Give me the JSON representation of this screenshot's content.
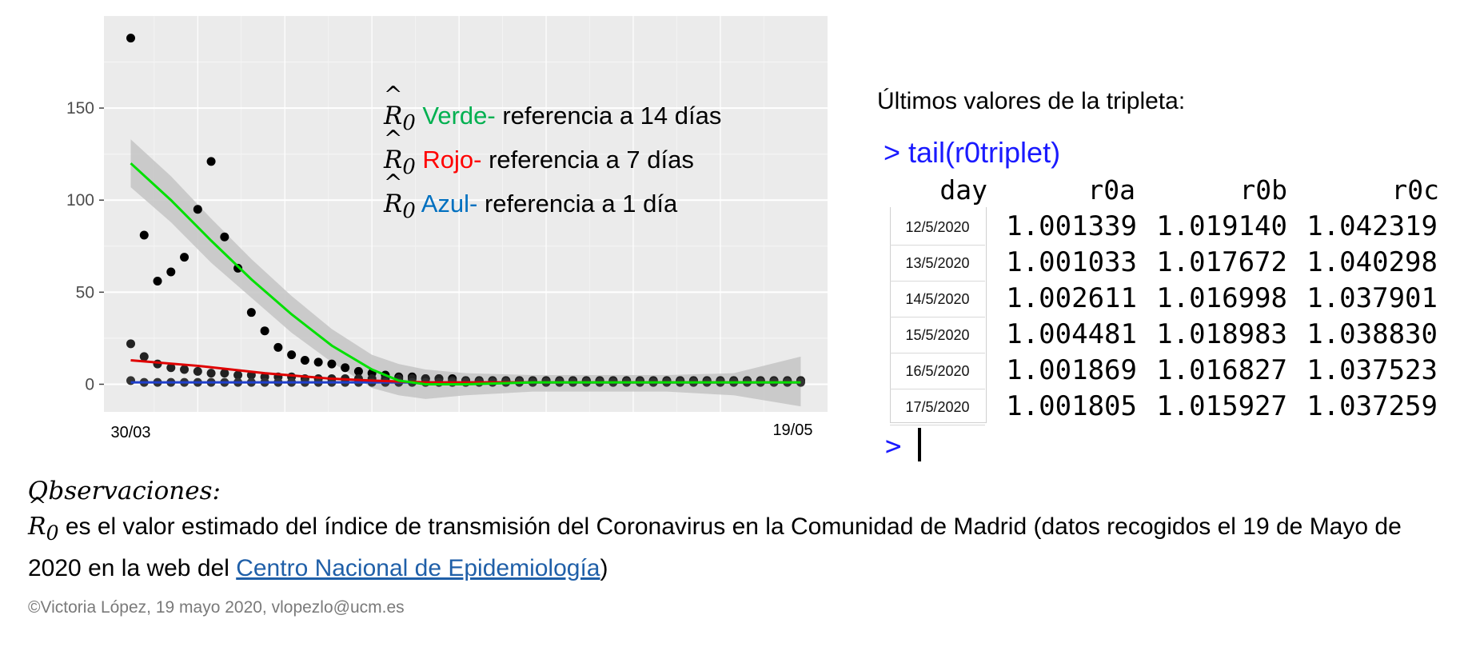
{
  "chart_data": {
    "type": "scatter",
    "x_tick_labels": [
      "30/03",
      "19/05"
    ],
    "y_ticks": [
      0,
      50,
      100,
      150
    ],
    "ylim": [
      -15,
      200
    ],
    "xlim": [
      -2,
      52
    ],
    "grid": true,
    "series": [
      {
        "values": [
          188,
          81,
          56,
          61,
          69,
          95,
          121,
          80,
          63,
          39,
          29,
          20,
          16,
          13,
          12,
          11,
          9,
          7,
          6,
          5,
          4,
          4,
          3,
          3,
          3,
          2,
          2,
          2,
          2,
          2,
          2,
          2,
          2,
          2,
          2,
          2,
          2,
          2,
          2,
          2,
          2,
          2,
          2,
          2,
          2,
          2,
          2,
          2,
          2,
          2,
          2
        ]
      },
      {
        "values": [
          22,
          15,
          11,
          9,
          8,
          7,
          6,
          6,
          5,
          5,
          4,
          4,
          4,
          3,
          3,
          3,
          3,
          3,
          3,
          3,
          3,
          3,
          3,
          3,
          2,
          2,
          2,
          2,
          2,
          2,
          2,
          2,
          2,
          2,
          2,
          2,
          2,
          2,
          2,
          2,
          2,
          2,
          2,
          2,
          2,
          2,
          2,
          2,
          2,
          2,
          2
        ]
      },
      {
        "values": [
          2,
          1,
          1,
          1,
          1,
          1,
          1,
          1,
          1,
          1,
          1,
          1,
          1,
          1,
          1,
          1,
          1,
          1,
          1,
          1,
          1,
          1,
          1,
          1,
          1,
          1,
          1,
          1,
          1,
          1,
          1,
          1,
          1,
          1,
          1,
          1,
          1,
          1,
          1,
          1,
          1,
          1,
          1,
          1,
          1,
          1,
          1,
          1,
          1,
          1,
          1
        ]
      }
    ],
    "smooth_green": [
      [
        0,
        120
      ],
      [
        3,
        100
      ],
      [
        6,
        78
      ],
      [
        9,
        57
      ],
      [
        12,
        38
      ],
      [
        15,
        21
      ],
      [
        18,
        8
      ],
      [
        20,
        2
      ],
      [
        22,
        0
      ],
      [
        25,
        0
      ],
      [
        30,
        1
      ],
      [
        35,
        1
      ],
      [
        40,
        1
      ],
      [
        45,
        1
      ],
      [
        50,
        1
      ]
    ],
    "smooth_green_band": [
      [
        0,
        133,
        107
      ],
      [
        3,
        113,
        88
      ],
      [
        6,
        90,
        66
      ],
      [
        9,
        68,
        47
      ],
      [
        12,
        48,
        28
      ],
      [
        15,
        30,
        12
      ],
      [
        18,
        16,
        -2
      ],
      [
        20,
        11,
        -6
      ],
      [
        22,
        8,
        -8
      ],
      [
        25,
        6,
        -6
      ],
      [
        30,
        5,
        -4
      ],
      [
        35,
        5,
        -4
      ],
      [
        40,
        5,
        -4
      ],
      [
        45,
        6,
        -6
      ],
      [
        50,
        15,
        -12
      ]
    ],
    "smooth_red": [
      [
        0,
        13
      ],
      [
        5,
        10
      ],
      [
        10,
        6
      ],
      [
        15,
        3
      ],
      [
        18,
        2
      ],
      [
        22,
        1
      ],
      [
        50,
        1
      ]
    ],
    "smooth_blue": [
      [
        0,
        1
      ],
      [
        10,
        1
      ],
      [
        20,
        1
      ],
      [
        30,
        1
      ],
      [
        40,
        1
      ],
      [
        50,
        1
      ]
    ],
    "line_colors": {
      "green": "#00e000",
      "red": "#e00000",
      "blue": "#1f3fcc"
    }
  },
  "legend": {
    "symbol": "R",
    "subscript": "0",
    "items": [
      {
        "color_label": "Verde-",
        "rest": " referencia a 14 días",
        "color": "#00b050"
      },
      {
        "color_label": "Rojo-",
        "rest": " referencia a 7 días",
        "color": "#ff0000"
      },
      {
        "color_label": "Azul-",
        "rest": " referencia a 1 día",
        "color": "#0070c0"
      }
    ]
  },
  "right_panel": {
    "title": "Últimos valores de la tripleta:",
    "command": "> tail(r0triplet)",
    "headers": [
      "day",
      "r0a",
      "r0b",
      "r0c"
    ],
    "rows": [
      {
        "day": "12/5/2020",
        "r0a": "1.001339",
        "r0b": "1.019140",
        "r0c": "1.042319"
      },
      {
        "day": "13/5/2020",
        "r0a": "1.001033",
        "r0b": "1.017672",
        "r0c": "1.040298"
      },
      {
        "day": "14/5/2020",
        "r0a": "1.002611",
        "r0b": "1.016998",
        "r0c": "1.037901"
      },
      {
        "day": "15/5/2020",
        "r0a": "1.004481",
        "r0b": "1.018983",
        "r0c": "1.038830"
      },
      {
        "day": "16/5/2020",
        "r0a": "1.001869",
        "r0b": "1.016827",
        "r0c": "1.037523"
      },
      {
        "day": "17/5/2020",
        "r0a": "1.001805",
        "r0b": "1.015927",
        "r0c": "1.037259"
      }
    ],
    "prompt": ">"
  },
  "observations": {
    "title": "Observaciones:",
    "text_before": " es el valor estimado del índice de transmisión del Coronavirus en la Comunidad de Madrid (datos recogidos el 19 de Mayo de 2020 en la web del ",
    "link": "Centro Nacional de Epidemiología",
    "text_after": ")"
  },
  "credit": "©Victoria López, 19 mayo 2020, vlopezlo@ucm.es"
}
